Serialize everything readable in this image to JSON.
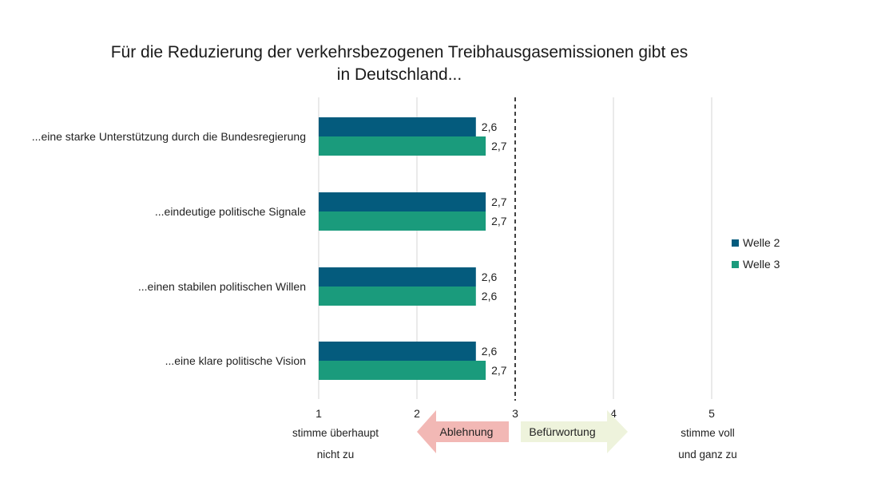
{
  "chart_data": {
    "type": "bar",
    "orientation": "horizontal",
    "title_lines": [
      "Für die Reduzierung der verkehrsbezogenen Treibhausgasemissionen  gibt es",
      "in Deutschland..."
    ],
    "categories": [
      "...eine starke Unterstützung durch die Bundesregierung",
      "...eindeutige politische Signale",
      "...einen stabilen politischen Willen",
      "...eine klare politische Vision"
    ],
    "series": [
      {
        "name": "Welle 2",
        "color": "#045b7d",
        "values": [
          2.6,
          2.7,
          2.6,
          2.6
        ],
        "labels": [
          "2,6",
          "2,7",
          "2,6",
          "2,6"
        ]
      },
      {
        "name": "Welle 3",
        "color": "#1a9b7c",
        "values": [
          2.7,
          2.7,
          2.6,
          2.7
        ],
        "labels": [
          "2,7",
          "2,7",
          "2,6",
          "2,7"
        ]
      }
    ],
    "xlim": [
      1,
      5
    ],
    "ticks": [
      "1",
      "2",
      "3",
      "4",
      "5"
    ],
    "reference_line": 3,
    "grid": true,
    "legend_position": "right",
    "scale_labels": {
      "left_lines": [
        "stimme überhaupt",
        "nicht zu"
      ],
      "right_lines": [
        "stimme voll",
        "und ganz zu"
      ]
    },
    "arrows": {
      "left": {
        "label": "Ablehnung",
        "color": "#f2b8b5"
      },
      "right": {
        "label": "Befürwortung",
        "color": "#eef3dc"
      }
    }
  }
}
